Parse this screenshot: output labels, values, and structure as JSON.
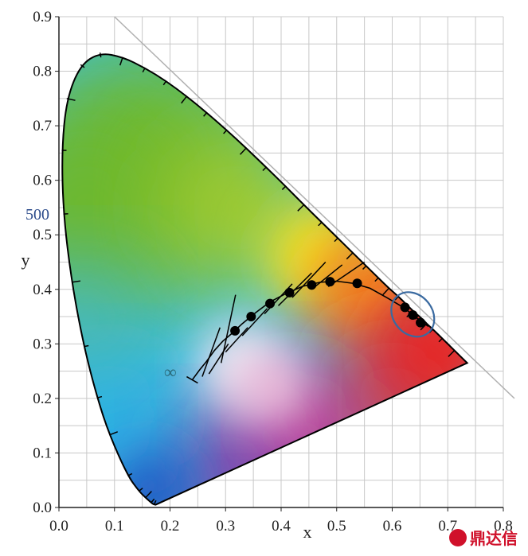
{
  "chart_data": {
    "type": "scatter",
    "title": "",
    "xlabel": "x",
    "ylabel": "y",
    "xlim": [
      0.0,
      0.8
    ],
    "ylim": [
      0.0,
      0.9
    ],
    "grid": true,
    "x_ticks": [
      "0.0",
      "0.1",
      "0.2",
      "0.3",
      "0.4",
      "0.5",
      "0.6",
      "0.7",
      "0.8"
    ],
    "y_ticks": [
      "0.0",
      "0.1",
      "0.2",
      "0.3",
      "0.4",
      "0.5",
      "0.6",
      "0.7",
      "0.8",
      "0.9"
    ],
    "spectral_locus": [
      [
        0.174,
        0.005
      ],
      [
        0.171,
        0.005
      ],
      [
        0.166,
        0.009
      ],
      [
        0.156,
        0.018
      ],
      [
        0.144,
        0.03
      ],
      [
        0.124,
        0.058
      ],
      [
        0.091,
        0.133
      ],
      [
        0.069,
        0.201
      ],
      [
        0.045,
        0.295
      ],
      [
        0.023,
        0.413
      ],
      [
        0.008,
        0.538
      ],
      [
        0.005,
        0.655
      ],
      [
        0.014,
        0.75
      ],
      [
        0.039,
        0.812
      ],
      [
        0.074,
        0.834
      ],
      [
        0.115,
        0.826
      ],
      [
        0.155,
        0.806
      ],
      [
        0.193,
        0.782
      ],
      [
        0.23,
        0.754
      ],
      [
        0.266,
        0.724
      ],
      [
        0.302,
        0.692
      ],
      [
        0.337,
        0.659
      ],
      [
        0.373,
        0.624
      ],
      [
        0.408,
        0.589
      ],
      [
        0.441,
        0.555
      ],
      [
        0.473,
        0.523
      ],
      [
        0.502,
        0.494
      ],
      [
        0.529,
        0.467
      ],
      [
        0.553,
        0.443
      ],
      [
        0.575,
        0.421
      ],
      [
        0.594,
        0.402
      ],
      [
        0.611,
        0.387
      ],
      [
        0.625,
        0.373
      ],
      [
        0.637,
        0.361
      ],
      [
        0.647,
        0.352
      ],
      [
        0.655,
        0.345
      ],
      [
        0.662,
        0.337
      ],
      [
        0.673,
        0.327
      ],
      [
        0.69,
        0.31
      ],
      [
        0.712,
        0.288
      ],
      [
        0.735,
        0.265
      ]
    ],
    "wavelength_label": "500",
    "planckian_locus": [
      [
        0.24,
        0.234
      ],
      [
        0.253,
        0.252
      ],
      [
        0.265,
        0.267
      ],
      [
        0.28,
        0.288
      ],
      [
        0.295,
        0.305
      ],
      [
        0.31,
        0.318
      ],
      [
        0.33,
        0.337
      ],
      [
        0.355,
        0.358
      ],
      [
        0.38,
        0.377
      ],
      [
        0.41,
        0.393
      ],
      [
        0.44,
        0.406
      ],
      [
        0.47,
        0.413
      ],
      [
        0.5,
        0.415
      ],
      [
        0.53,
        0.411
      ],
      [
        0.56,
        0.402
      ],
      [
        0.59,
        0.385
      ],
      [
        0.62,
        0.367
      ],
      [
        0.65,
        0.343
      ],
      [
        0.665,
        0.332
      ]
    ],
    "infinity_label": "∞",
    "isotemperature_lines": [
      [
        [
          0.258,
          0.24
        ],
        [
          0.29,
          0.33
        ]
      ],
      [
        [
          0.27,
          0.245
        ],
        [
          0.305,
          0.3
        ]
      ],
      [
        [
          0.292,
          0.265
        ],
        [
          0.318,
          0.39
        ]
      ],
      [
        [
          0.3,
          0.285
        ],
        [
          0.34,
          0.33
        ]
      ],
      [
        [
          0.33,
          0.315
        ],
        [
          0.375,
          0.365
        ]
      ],
      [
        [
          0.37,
          0.355
        ],
        [
          0.42,
          0.41
        ]
      ],
      [
        [
          0.395,
          0.37
        ],
        [
          0.455,
          0.43
        ]
      ],
      [
        [
          0.42,
          0.385
        ],
        [
          0.48,
          0.45
        ]
      ],
      [
        [
          0.455,
          0.4
        ],
        [
          0.51,
          0.445
        ]
      ],
      [
        [
          0.485,
          0.405
        ],
        [
          0.55,
          0.45
        ]
      ]
    ],
    "points": [
      {
        "x": 0.317,
        "y": 0.324
      },
      {
        "x": 0.346,
        "y": 0.35
      },
      {
        "x": 0.38,
        "y": 0.374
      },
      {
        "x": 0.415,
        "y": 0.394
      },
      {
        "x": 0.455,
        "y": 0.408
      },
      {
        "x": 0.488,
        "y": 0.414
      },
      {
        "x": 0.537,
        "y": 0.411
      },
      {
        "x": 0.623,
        "y": 0.367
      },
      {
        "x": 0.637,
        "y": 0.353
      },
      {
        "x": 0.651,
        "y": 0.339
      }
    ],
    "highlight_ellipse": {
      "cx": 0.637,
      "cy": 0.354,
      "rx": 0.035,
      "ry": 0.044,
      "angle_deg": -40
    },
    "purple_line": [
      [
        0.174,
        0.005
      ],
      [
        0.735,
        0.265
      ]
    ],
    "reference_line": [
      [
        0.1,
        0.9
      ],
      [
        0.82,
        0.2
      ]
    ],
    "colors": {
      "grid": "#c8c8c8",
      "locus_stroke": "#000000",
      "points": "#000000",
      "ellipse": "#3a6aa0",
      "reference_line": "#b0b0b0",
      "green": "#6db82e",
      "cyan": "#3fbfe0",
      "blue": "#2050c0",
      "red": "#e32a2a",
      "orange": "#f28a20",
      "yellow": "#f2e020",
      "magenta": "#e0208a",
      "white": "#f4f0f6"
    }
  },
  "watermark": {
    "text": "鼎达信"
  }
}
